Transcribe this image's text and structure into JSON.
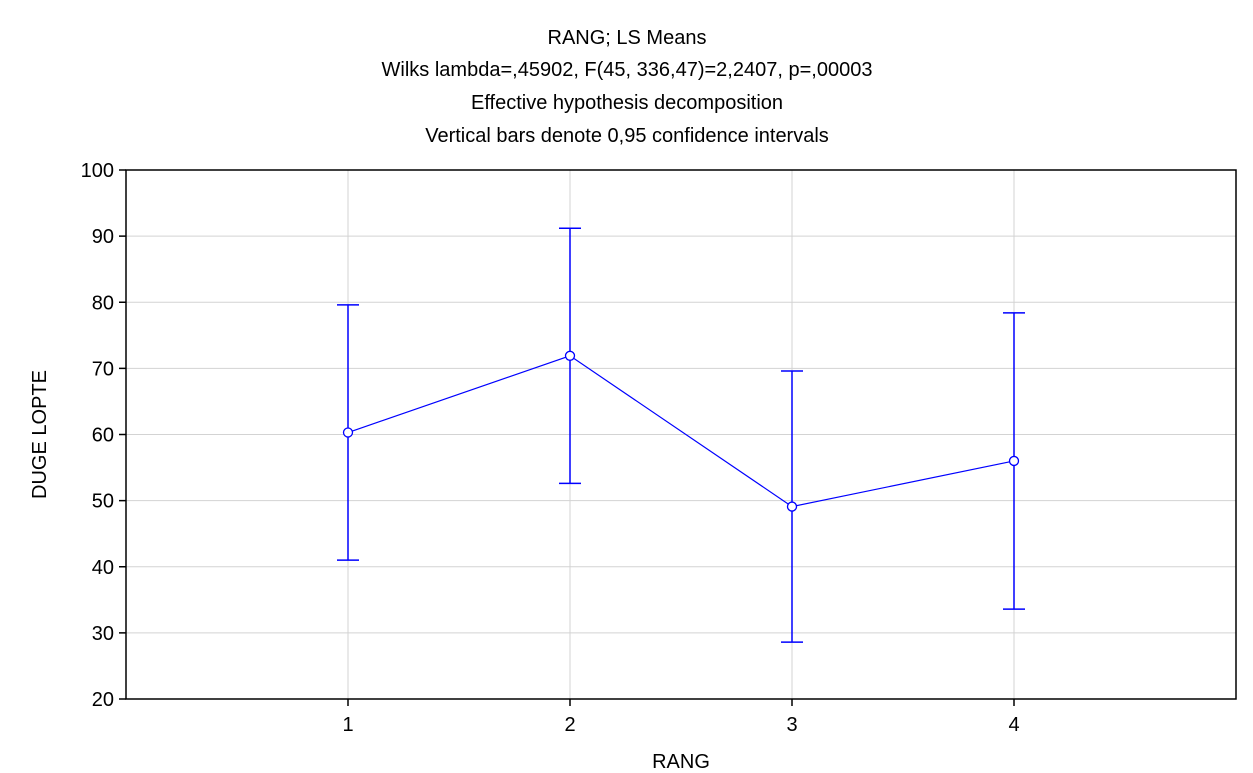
{
  "chart_data": {
    "type": "line",
    "title_lines": [
      "RANG; LS Means",
      "Wilks lambda=,45902, F(45, 336,47)=2,2407, p=,00003",
      "Effective hypothesis decomposition",
      "Vertical bars denote 0,95 confidence intervals"
    ],
    "xlabel": "RANG",
    "ylabel": "DUGE LOPTE",
    "categories": [
      "1",
      "2",
      "3",
      "4"
    ],
    "ylim": [
      20,
      100
    ],
    "yticks": [
      "20",
      "30",
      "40",
      "50",
      "60",
      "70",
      "80",
      "90",
      "100"
    ],
    "grid": true,
    "series": [
      {
        "values": [
          60.3,
          71.9,
          49.1,
          56.0
        ],
        "ci_lower": [
          41.0,
          52.6,
          28.6,
          33.6
        ],
        "ci_upper": [
          79.6,
          91.2,
          69.6,
          78.4
        ]
      }
    ],
    "colors": {
      "series": "#0000ff",
      "grid": "#d3d3d3",
      "axis": "#000000"
    }
  }
}
